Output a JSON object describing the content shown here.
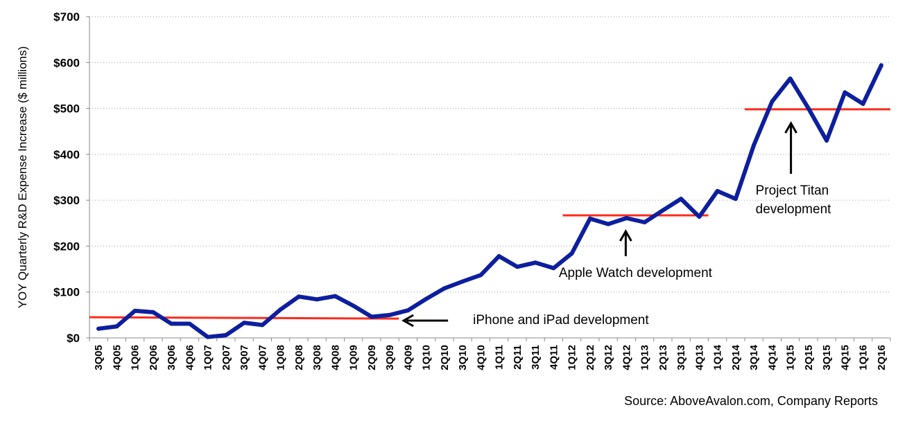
{
  "chart_data": {
    "type": "line",
    "ylabel": "YOY Quarterly R&D Expense Increase ($ millions)",
    "xlabel": "",
    "ylim": [
      0,
      700
    ],
    "y_ticks": [
      "$0",
      "$100",
      "$200",
      "$300",
      "$400",
      "$500",
      "$600",
      "$700"
    ],
    "y_tick_values": [
      0,
      100,
      200,
      300,
      400,
      500,
      600,
      700
    ],
    "grid": "horizontal dotted",
    "categories": [
      "3Q05",
      "4Q05",
      "1Q06",
      "2Q06",
      "3Q06",
      "4Q06",
      "1Q07",
      "2Q07",
      "3Q07",
      "4Q07",
      "1Q08",
      "2Q08",
      "3Q08",
      "4Q08",
      "1Q09",
      "2Q09",
      "3Q09",
      "4Q09",
      "1Q10",
      "2Q10",
      "3Q10",
      "4Q10",
      "1Q11",
      "2Q11",
      "3Q11",
      "4Q11",
      "1Q12",
      "2Q12",
      "3Q12",
      "4Q12",
      "1Q13",
      "2Q13",
      "3Q13",
      "4Q13",
      "1Q14",
      "2Q14",
      "3Q14",
      "4Q14",
      "1Q15",
      "2Q15",
      "3Q15",
      "4Q15",
      "1Q16",
      "2Q16"
    ],
    "series": [
      {
        "color": "#0d1f9e",
        "values": [
          20,
          25,
          59,
          56,
          31,
          31,
          2,
          6,
          33,
          28,
          62,
          90,
          84,
          91,
          70,
          46,
          50,
          60,
          85,
          108,
          123,
          137,
          178,
          155,
          164,
          152,
          184,
          260,
          248,
          261,
          252,
          278,
          303,
          264,
          320,
          303,
          420,
          515,
          565,
          500,
          430,
          535,
          510,
          594
        ]
      }
    ],
    "reference_lines": [
      {
        "color": "#ff2a1a",
        "from": "3Q05",
        "to": "3Q09",
        "y_start": 45,
        "y_end": 42
      },
      {
        "color": "#ff2a1a",
        "from": "1Q12",
        "to": "4Q13",
        "y_start": 267,
        "y_end": 267
      },
      {
        "color": "#ff2a1a",
        "from": "3Q14",
        "to": "2Q16",
        "y_start": 498,
        "y_end": 498
      }
    ],
    "annotations": [
      {
        "text_lines": [
          "iPhone and iPad development"
        ],
        "arrow": "left",
        "points_to": "3Q09"
      },
      {
        "text_lines": [
          "Apple Watch development"
        ],
        "arrow": "up",
        "points_to": "4Q12"
      },
      {
        "text_lines": [
          "Project Titan",
          "development"
        ],
        "arrow": "up",
        "points_to": "1Q15"
      }
    ],
    "source": "Source: AboveAvalon.com, Company Reports"
  }
}
